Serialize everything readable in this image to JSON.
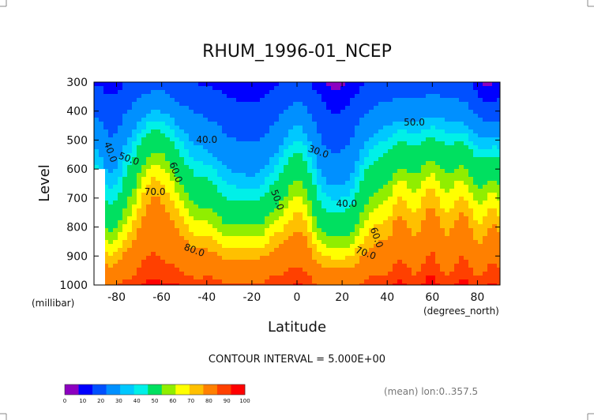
{
  "chart_data": {
    "type": "contour",
    "title": "RHUM_1996-01_NCEP",
    "xlabel": "Latitude",
    "ylabel": "Level",
    "x_unit": "(degrees_north)",
    "y_unit": "(millibar)",
    "x_ticks": [
      "-80",
      "-60",
      "-40",
      "-20",
      "0",
      "20",
      "40",
      "60",
      "80"
    ],
    "x_tick_values": [
      -80,
      -60,
      -40,
      -20,
      0,
      20,
      40,
      60,
      80
    ],
    "y_ticks": [
      "300",
      "400",
      "500",
      "600",
      "700",
      "800",
      "900",
      "1000"
    ],
    "y_tick_values": [
      300,
      400,
      500,
      600,
      700,
      800,
      900,
      1000
    ],
    "xlim": [
      -90,
      90
    ],
    "ylim": [
      1000,
      300
    ],
    "contour_labels": [
      {
        "text": "40.0",
        "x": -84,
        "y": 545
      },
      {
        "text": "50.0",
        "x": -75,
        "y": 575
      },
      {
        "text": "70.0",
        "x": -63,
        "y": 690
      },
      {
        "text": "60.0",
        "x": -55,
        "y": 615
      },
      {
        "text": "80.0",
        "x": -46,
        "y": 890
      },
      {
        "text": "40.0",
        "x": -40,
        "y": 510
      },
      {
        "text": "50.0",
        "x": -10,
        "y": 710
      },
      {
        "text": "30.0",
        "x": 9,
        "y": 550
      },
      {
        "text": "40.0",
        "x": 22,
        "y": 730
      },
      {
        "text": "60.0",
        "x": 34,
        "y": 840
      },
      {
        "text": "70.0",
        "x": 30,
        "y": 900
      },
      {
        "text": "50.0",
        "x": 52,
        "y": 450
      }
    ],
    "contour_interval_text": "CONTOUR INTERVAL = 5.000E+00",
    "note": "(mean) lon:0..357.5",
    "colorbar": {
      "ticks": [
        "0",
        "10",
        "20",
        "30",
        "40",
        "50",
        "60",
        "70",
        "80",
        "90",
        "100"
      ],
      "colors": [
        "#8c00c0",
        "#0000ff",
        "#0050ff",
        "#0090ff",
        "#00c8ff",
        "#00f0e8",
        "#00e060",
        "#90ee00",
        "#ffff00",
        "#ffc000",
        "#ff8000",
        "#ff4000",
        "#ff0000"
      ]
    },
    "bands": [
      {
        "level": 15,
        "color": "#0000ff"
      },
      {
        "level": 20,
        "color": "#0050ff"
      },
      {
        "level": 30,
        "color": "#0090ff"
      },
      {
        "level": 40,
        "color": "#00c8ff"
      },
      {
        "level": 45,
        "color": "#00f0e8"
      },
      {
        "level": 50,
        "color": "#00e060"
      },
      {
        "level": 60,
        "color": "#90ee00"
      },
      {
        "level": 65,
        "color": "#ffff00"
      },
      {
        "level": 70,
        "color": "#ffc000"
      },
      {
        "level": 75,
        "color": "#ff8000"
      },
      {
        "level": 85,
        "color": "#ff4000"
      },
      {
        "level": 90,
        "color": "#ff0000"
      }
    ]
  }
}
